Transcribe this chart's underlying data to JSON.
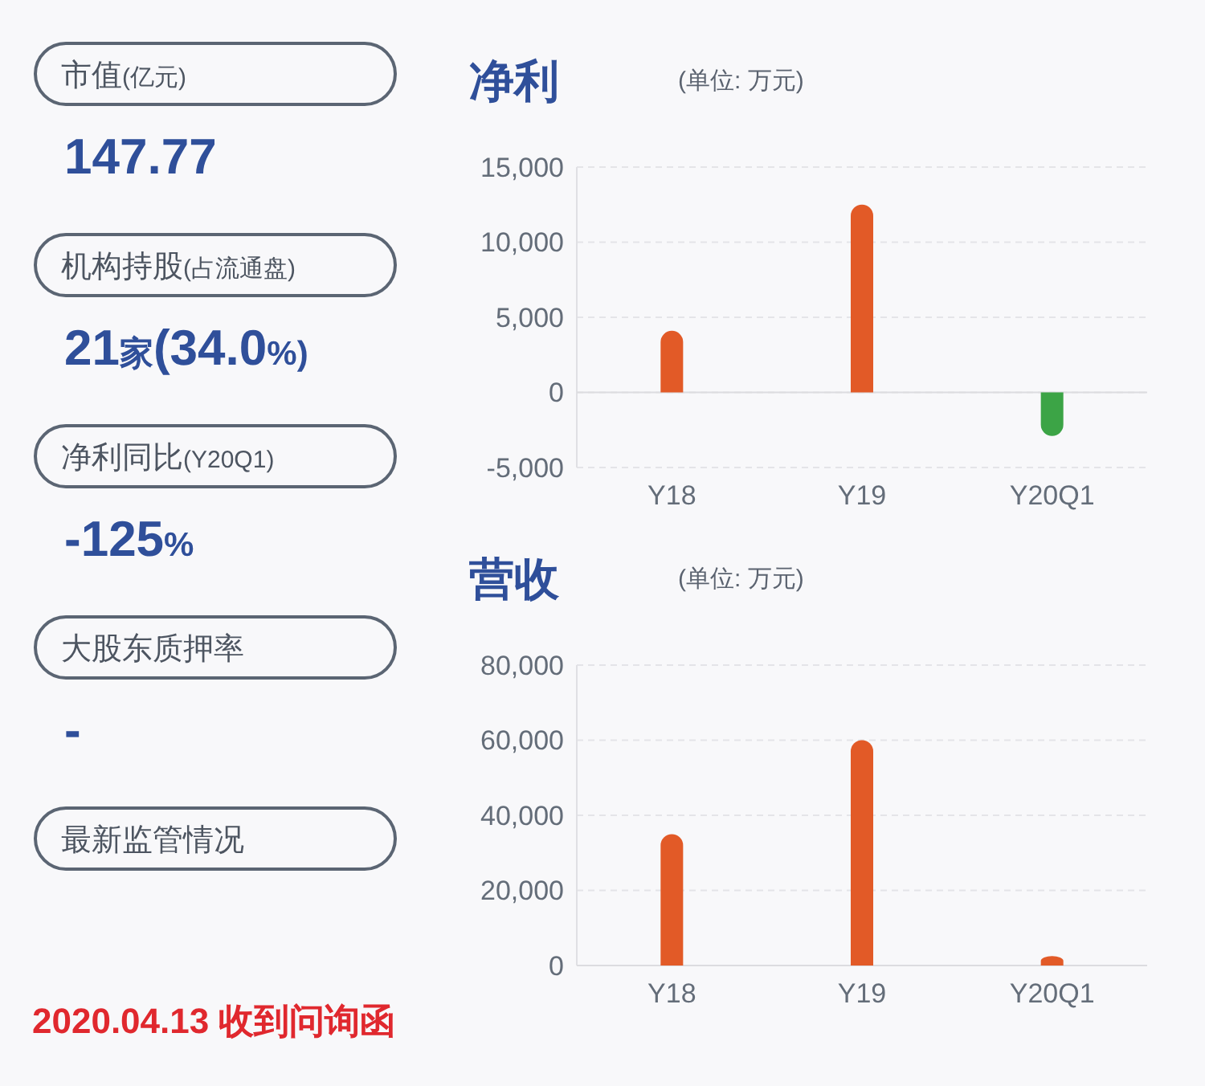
{
  "chart_data": [
    {
      "type": "other",
      "annotations": [
        "市值(亿元)",
        "147.77",
        "机构持股(占流通盘)",
        "21家(34.0%)",
        "净利同比(Y20Q1)",
        "-125%",
        "大股东质押率",
        "-",
        "最新监管情况",
        "2020.04.13 收到问询函"
      ],
      "colors": [
        "#2f4f9a",
        "#2f4f9a",
        "#2f4f9a",
        "#2f4f9a",
        "#e0282e"
      ]
    },
    {
      "type": "bar",
      "title": "净利",
      "subtitle": "(单位: 万元)",
      "categories": [
        "Y18",
        "Y19",
        "Y20Q1"
      ],
      "values": [
        4100,
        12500,
        -2900
      ],
      "colors": [
        "#e25a27",
        "#e25a27",
        "#3ca446"
      ],
      "ylim": [
        -5000,
        15000
      ],
      "yticks": [
        {
          "value": -5000,
          "label": "-5,000"
        },
        0,
        {
          "value": 5000,
          "label": "5,000"
        },
        {
          "value": 10000,
          "label": "10,000"
        },
        {
          "value": 15000,
          "label": "15,000"
        }
      ],
      "grid": "y"
    },
    {
      "type": "bar",
      "title": "营收",
      "subtitle": "(单位: 万元)",
      "categories": [
        "Y18",
        "Y19",
        "Y20Q1"
      ],
      "values": [
        35000,
        60000,
        2500
      ],
      "colors": [
        "#e25a27",
        "#e25a27",
        "#e25a27"
      ],
      "ylim": [
        0,
        80000
      ],
      "yticks": [
        0,
        {
          "value": 20000,
          "label": "20,000"
        },
        {
          "value": 40000,
          "label": "40,000"
        },
        {
          "value": 60000,
          "label": "60,000"
        },
        {
          "value": 80000,
          "label": "80,000"
        }
      ],
      "grid": "y"
    }
  ]
}
